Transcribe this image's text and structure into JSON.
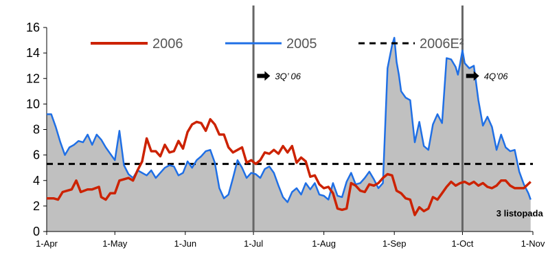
{
  "chart_data": {
    "type": "line",
    "title": "",
    "xlabel": "",
    "ylabel": "",
    "ylim": [
      0,
      16
    ],
    "yticks": [
      "0",
      "2",
      "4",
      "6",
      "8",
      "10",
      "12",
      "14",
      "16"
    ],
    "xticks": [
      "1-Apr",
      "1-May",
      "1-Jun",
      "1-Jul",
      "1-Aug",
      "1-Sep",
      "1-Oct",
      "1-Nov"
    ],
    "xtick_days": [
      0,
      30,
      61,
      91,
      122,
      153,
      183,
      214
    ],
    "xlim_days": [
      0,
      214
    ],
    "grid": false,
    "legend_placement": "top",
    "series": [
      {
        "name": "2006",
        "color": "#cc2200",
        "style": "line",
        "x": [
          0,
          3,
          5,
          7,
          9,
          11,
          13,
          15,
          18,
          20,
          23,
          24,
          26,
          28,
          30,
          32,
          34,
          36,
          38,
          40,
          42,
          44,
          46,
          48,
          50,
          52,
          54,
          56,
          58,
          60,
          62,
          64,
          66,
          68,
          70,
          72,
          74,
          76,
          78,
          80,
          82,
          84,
          86,
          88,
          90,
          92,
          94,
          96,
          98,
          100,
          102,
          104,
          106,
          108,
          110,
          112,
          114,
          116,
          118,
          120,
          122,
          124,
          126,
          128,
          130,
          132,
          134,
          136,
          138,
          140,
          142,
          144,
          146,
          148,
          150,
          152,
          154,
          156,
          158,
          160,
          162,
          164,
          166,
          168,
          170,
          172,
          174,
          176,
          178,
          180,
          182,
          184,
          186,
          188,
          190,
          192,
          194,
          196,
          198,
          200,
          202,
          204,
          206,
          208,
          210,
          213
        ],
        "values": [
          2.6,
          2.6,
          2.5,
          3.1,
          3.2,
          3.3,
          4.0,
          3.1,
          3.3,
          3.3,
          3.5,
          2.7,
          2.5,
          3.0,
          3.0,
          4.0,
          4.1,
          4.2,
          4.0,
          4.8,
          5.5,
          7.3,
          6.3,
          6.3,
          5.9,
          6.8,
          6.2,
          6.3,
          7.1,
          6.5,
          7.8,
          8.4,
          8.6,
          8.5,
          7.9,
          8.8,
          8.4,
          7.6,
          7.6,
          6.6,
          6.2,
          6.4,
          6.6,
          5.4,
          5.6,
          5.3,
          5.6,
          6.2,
          6.1,
          6.4,
          6.1,
          6.7,
          6.2,
          6.7,
          5.4,
          5.8,
          5.5,
          4.3,
          4.4,
          3.7,
          3.4,
          3.5,
          3.0,
          1.8,
          1.7,
          1.8,
          3.8,
          3.6,
          3.2,
          3.1,
          3.7,
          3.6,
          3.8,
          4.2,
          4.5,
          4.4,
          3.2,
          3.0,
          2.6,
          2.5,
          1.3,
          1.9,
          1.6,
          1.8,
          2.7,
          2.5,
          3.0,
          3.5,
          3.9,
          3.6,
          3.8,
          3.9,
          3.7,
          3.9,
          3.6,
          3.8,
          3.5,
          3.4,
          3.6,
          4.0,
          4.0,
          3.6,
          3.4,
          3.4,
          3.4,
          3.9
        ]
      },
      {
        "name": "2005",
        "color": "#1f6fe5",
        "style": "line-with-grey-area",
        "fill": "#c0c0c0",
        "x": [
          0,
          2,
          4,
          6,
          8,
          10,
          12,
          14,
          16,
          18,
          20,
          22,
          24,
          26,
          28,
          30,
          32,
          34,
          36,
          38,
          40,
          42,
          44,
          46,
          48,
          50,
          52,
          54,
          56,
          58,
          60,
          62,
          64,
          66,
          68,
          70,
          72,
          74,
          76,
          78,
          80,
          82,
          84,
          86,
          88,
          90,
          92,
          94,
          96,
          98,
          100,
          102,
          104,
          106,
          108,
          110,
          112,
          114,
          116,
          118,
          120,
          122,
          124,
          126,
          128,
          130,
          132,
          134,
          136,
          138,
          140,
          142,
          144,
          146,
          148,
          150,
          152,
          153,
          154,
          155,
          156,
          158,
          160,
          162,
          164,
          166,
          168,
          170,
          172,
          174,
          176,
          178,
          180,
          181,
          182,
          183,
          184,
          186,
          188,
          190,
          192,
          194,
          196,
          198,
          200,
          202,
          204,
          206,
          208,
          210,
          212,
          213
        ],
        "values": [
          9.2,
          9.2,
          8.2,
          7.0,
          6.0,
          6.6,
          6.8,
          7.1,
          7.0,
          7.6,
          6.8,
          7.6,
          7.2,
          6.6,
          6.1,
          5.6,
          7.9,
          5.2,
          4.5,
          4.2,
          4.8,
          4.6,
          4.4,
          4.8,
          4.2,
          4.6,
          5.0,
          5.2,
          5.1,
          4.4,
          4.6,
          5.5,
          5.0,
          5.6,
          5.9,
          6.3,
          6.4,
          5.4,
          3.4,
          2.6,
          2.9,
          4.2,
          5.6,
          5.0,
          4.2,
          4.6,
          4.5,
          4.2,
          4.9,
          5.1,
          4.6,
          3.6,
          2.7,
          2.3,
          3.1,
          3.4,
          2.9,
          3.8,
          3.3,
          3.8,
          2.9,
          2.8,
          2.5,
          3.8,
          2.8,
          2.7,
          3.9,
          4.6,
          3.7,
          3.8,
          4.2,
          4.7,
          4.1,
          3.4,
          3.8,
          12.8,
          14.6,
          15.2,
          13.3,
          12.3,
          11.0,
          10.5,
          10.3,
          7.0,
          8.6,
          6.7,
          6.4,
          8.4,
          9.2,
          8.5,
          13.6,
          13.5,
          12.9,
          12.3,
          13.2,
          14.2,
          13.2,
          12.8,
          13.0,
          10.3,
          8.3,
          9.0,
          8.2,
          6.4,
          7.6,
          6.6,
          6.3,
          6.4,
          4.7,
          3.7,
          3.0,
          2.5
        ]
      },
      {
        "name": "2006E²",
        "color": "#000000",
        "style": "dashed",
        "values": [
          5.3,
          5.3
        ]
      }
    ],
    "vertical_lines_days": [
      91,
      183
    ],
    "markers": [
      {
        "label": "3Q’ 06",
        "x": 92,
        "y": 12.2
      },
      {
        "label": "4Q’06",
        "x": 184,
        "y": 12.2
      }
    ],
    "annotations": [
      {
        "label": "3 listopada",
        "x": 213,
        "y": 1.4
      }
    ]
  }
}
